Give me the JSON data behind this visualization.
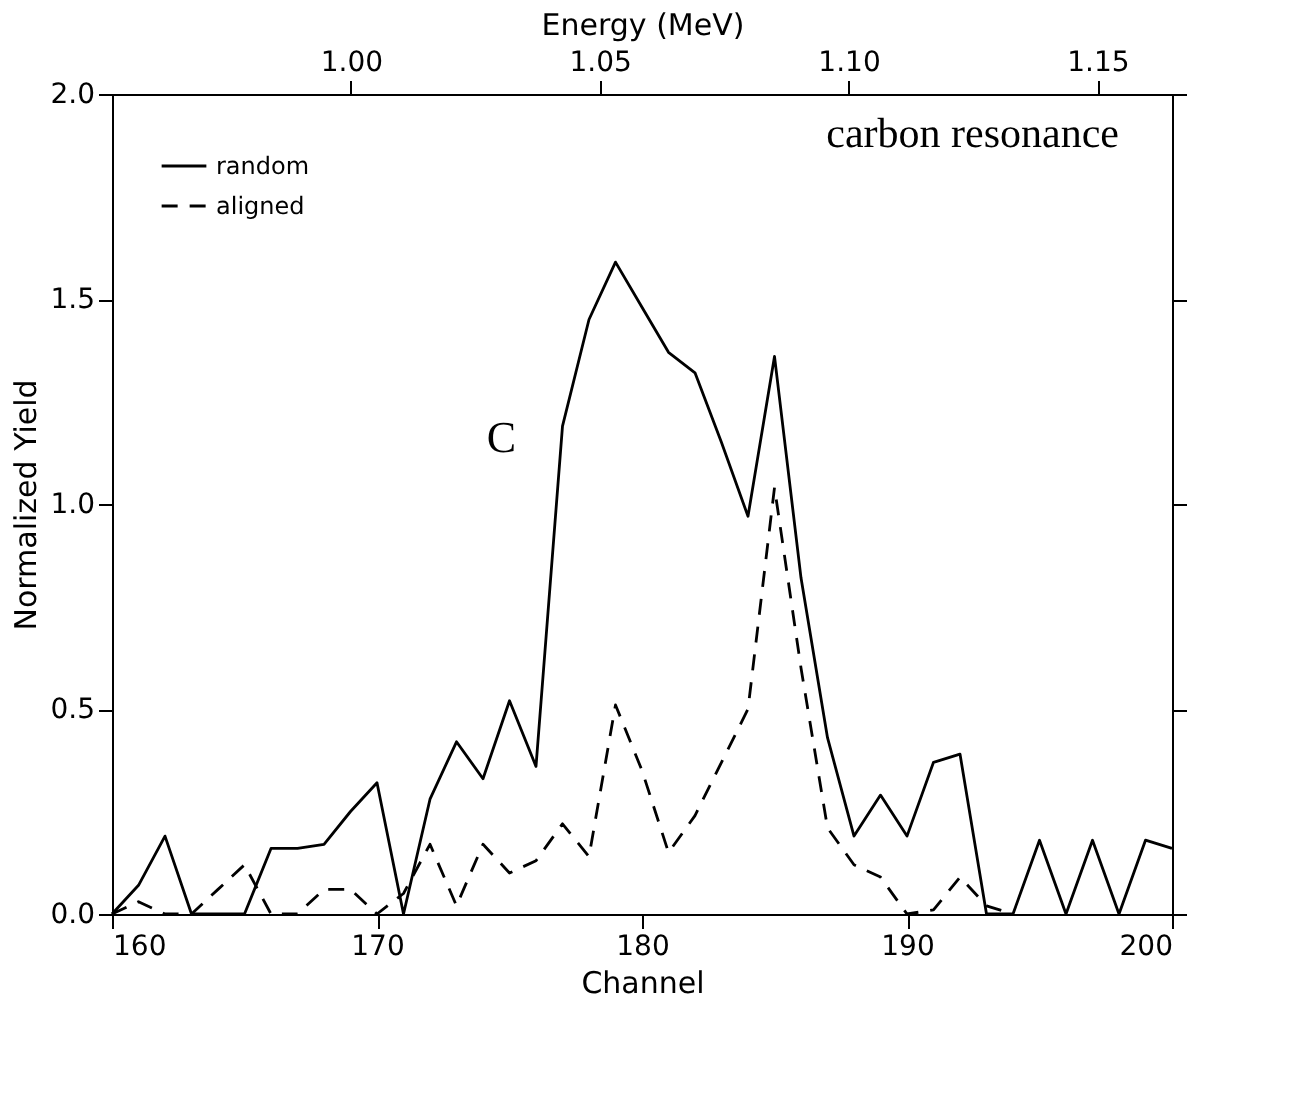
{
  "chart_data": {
    "type": "line",
    "xlabel": "Channel",
    "ylabel": "Normalized Yield",
    "x2label": "Energy (MeV)",
    "x": [
      160,
      161,
      162,
      163,
      164,
      165,
      166,
      167,
      168,
      169,
      170,
      171,
      172,
      173,
      174,
      175,
      176,
      177,
      178,
      179,
      180,
      181,
      182,
      183,
      184,
      185,
      186,
      187,
      188,
      189,
      190,
      191,
      192,
      193,
      194,
      195,
      196,
      197,
      198,
      199,
      200
    ],
    "series": [
      {
        "name": "random",
        "color": "#000000",
        "line_style": "solid",
        "values": [
          0,
          0.07,
          0.19,
          0,
          0,
          0,
          0.16,
          0.16,
          0.17,
          0.25,
          0.32,
          0,
          0.28,
          0.42,
          0.33,
          0.52,
          0.36,
          1.19,
          1.45,
          1.59,
          1.48,
          1.37,
          1.32,
          1.15,
          0.97,
          1.36,
          0.82,
          0.43,
          0.19,
          0.29,
          0.19,
          0.37,
          0.39,
          0,
          0,
          0.18,
          0,
          0.18,
          0,
          0.18,
          0.16
        ]
      },
      {
        "name": "aligned",
        "color": "#000000",
        "line_style": "dashed",
        "x": [
          160,
          161,
          162,
          163,
          164,
          165,
          166,
          167,
          168,
          169,
          170,
          171,
          172,
          173,
          174,
          175,
          176,
          177,
          178,
          179,
          180,
          181,
          182,
          183,
          184,
          185,
          186,
          187,
          188,
          189,
          190,
          191,
          192,
          193,
          194
        ],
        "values": [
          0,
          0.03,
          0,
          0,
          0.06,
          0.12,
          0,
          0,
          0.06,
          0.06,
          0,
          0.05,
          0.17,
          0.02,
          0.17,
          0.1,
          0.13,
          0.22,
          0.14,
          0.51,
          0.35,
          0.15,
          0.24,
          0.37,
          0.5,
          1.04,
          0.6,
          0.21,
          0.12,
          0.09,
          0,
          0.01,
          0.09,
          0.02,
          0
        ]
      }
    ],
    "xlim": [
      160,
      200
    ],
    "xticks": [
      160,
      170,
      180,
      190,
      200
    ],
    "ylim": [
      0,
      2
    ],
    "yticks": [
      {
        "value": 0,
        "label": "0.0"
      },
      {
        "value": 0.5,
        "label": "0.5"
      },
      {
        "value": 1,
        "label": "1.0"
      },
      {
        "value": 1.5,
        "label": "1.5"
      },
      {
        "value": 2,
        "label": "2.0"
      }
    ],
    "x2lim": [
      0.952,
      1.165
    ],
    "x2ticks": [
      {
        "value": 1.0,
        "label": "1.00"
      },
      {
        "value": 1.05,
        "label": "1.05"
      },
      {
        "value": 1.1,
        "label": "1.10"
      },
      {
        "value": 1.15,
        "label": "1.15"
      }
    ],
    "annotations": [
      "carbon resonance",
      "C"
    ],
    "legend": "top left",
    "grid": false,
    "marker": "none"
  }
}
